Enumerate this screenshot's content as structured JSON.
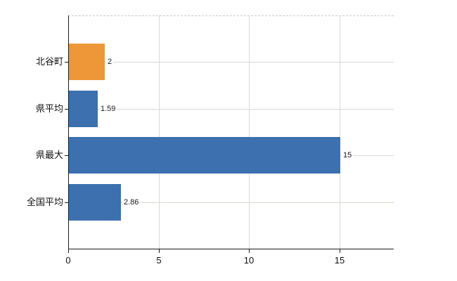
{
  "chart_data": {
    "type": "bar",
    "orientation": "horizontal",
    "title": "",
    "xlabel": "",
    "ylabel": "",
    "categories": [
      "北谷町",
      "県平均",
      "県最大",
      "全国平均"
    ],
    "values": [
      2,
      1.59,
      15,
      2.86
    ],
    "value_labels": [
      "2",
      "1.59",
      "15",
      "2.86"
    ],
    "bar_colors": [
      "#ED9739",
      "#3C70AE",
      "#3C70AE",
      "#3C70AE"
    ],
    "x_ticks": [
      0,
      5,
      10,
      15
    ],
    "x_tick_labels": [
      "0",
      "5",
      "10",
      "15"
    ],
    "xlim": [
      0,
      18
    ],
    "grid": true,
    "legend": "none",
    "colors": {
      "background": "#ffffff",
      "axis": "#1a1a1a",
      "grid_vertical": "#d9d9d9",
      "grid_horizontal": "#d3dad0",
      "plot_top_border": "#c9c9cf",
      "label_text": "#111111",
      "value_text": "#1a1a1a"
    }
  }
}
